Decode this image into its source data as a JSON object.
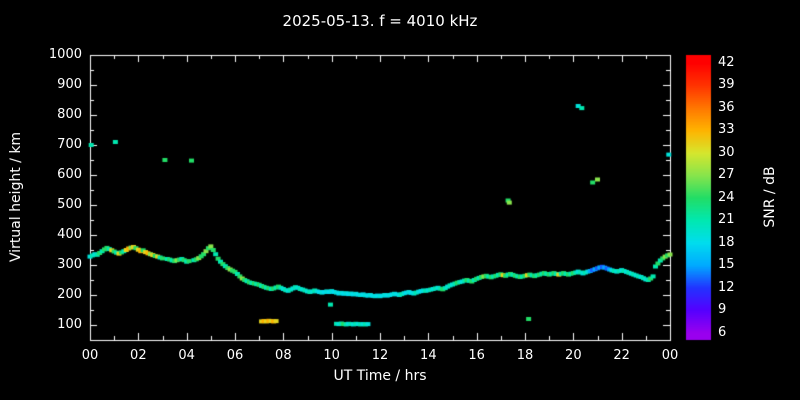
{
  "colors": {
    "background": "#000000",
    "text": "#ffffff",
    "axis": "#ffffff"
  },
  "chart_data": {
    "type": "scatter",
    "title": "2025-05-13. f = 4010 kHz",
    "xlabel": "UT Time / hrs",
    "ylabel": "Virtual height / km",
    "colorbar_label": "SNR / dB",
    "xlim": [
      0,
      24
    ],
    "ylim": [
      50,
      1000
    ],
    "grid": false,
    "legend": "none",
    "x_ticks": [
      {
        "v": 0,
        "label": "00"
      },
      {
        "v": 2,
        "label": "02"
      },
      {
        "v": 4,
        "label": "04"
      },
      {
        "v": 6,
        "label": "06"
      },
      {
        "v": 8,
        "label": "08"
      },
      {
        "v": 10,
        "label": "10"
      },
      {
        "v": 12,
        "label": "12"
      },
      {
        "v": 14,
        "label": "14"
      },
      {
        "v": 16,
        "label": "16"
      },
      {
        "v": 18,
        "label": "18"
      },
      {
        "v": 20,
        "label": "20"
      },
      {
        "v": 22,
        "label": "22"
      },
      {
        "v": 24,
        "label": "00"
      }
    ],
    "x_minor_step": 1,
    "y_ticks": [
      100,
      200,
      300,
      400,
      500,
      600,
      700,
      800,
      900,
      1000
    ],
    "y_minor_step": 50,
    "colorbar": {
      "min": 6,
      "max": 42,
      "ticks": [
        6,
        9,
        12,
        15,
        18,
        21,
        24,
        27,
        30,
        33,
        36,
        39,
        42
      ],
      "scale": [
        [
          6,
          "#9900ee"
        ],
        [
          9,
          "#5500ff"
        ],
        [
          12,
          "#2233ff"
        ],
        [
          15,
          "#00aaff"
        ],
        [
          18,
          "#00ddee"
        ],
        [
          21,
          "#00e8b0"
        ],
        [
          24,
          "#22dd66"
        ],
        [
          27,
          "#88e44c"
        ],
        [
          30,
          "#d6e62e"
        ],
        [
          33,
          "#ffb300"
        ],
        [
          36,
          "#ff7700"
        ],
        [
          39,
          "#ff3300"
        ],
        [
          42,
          "#ff0000"
        ]
      ]
    },
    "point_fields": [
      "ut_hours",
      "virtual_height_km",
      "snr_db"
    ],
    "points": [
      [
        0.0,
        328,
        19
      ],
      [
        0.05,
        700,
        21
      ],
      [
        0.1,
        332,
        21
      ],
      [
        0.2,
        336,
        19
      ],
      [
        0.3,
        334,
        21
      ],
      [
        0.4,
        340,
        24
      ],
      [
        0.5,
        346,
        21
      ],
      [
        0.6,
        352,
        24
      ],
      [
        0.7,
        357,
        24
      ],
      [
        0.8,
        353,
        21
      ],
      [
        0.9,
        349,
        31
      ],
      [
        1.0,
        345,
        24
      ],
      [
        1.05,
        710,
        21
      ],
      [
        1.1,
        341,
        21
      ],
      [
        1.2,
        338,
        31
      ],
      [
        1.3,
        342,
        24
      ],
      [
        1.4,
        346,
        21
      ],
      [
        1.5,
        350,
        31
      ],
      [
        1.6,
        355,
        33
      ],
      [
        1.7,
        358,
        27
      ],
      [
        1.8,
        360,
        31
      ],
      [
        1.9,
        356,
        24
      ],
      [
        2.0,
        351,
        31
      ],
      [
        2.1,
        346,
        33
      ],
      [
        2.2,
        349,
        24
      ],
      [
        2.3,
        343,
        31
      ],
      [
        2.4,
        339,
        33
      ],
      [
        2.5,
        336,
        27
      ],
      [
        2.6,
        333,
        31
      ],
      [
        2.7,
        330,
        24
      ],
      [
        2.8,
        328,
        31
      ],
      [
        2.9,
        325,
        21
      ],
      [
        3.0,
        322,
        24
      ],
      [
        3.1,
        650,
        24
      ],
      [
        3.2,
        320,
        21
      ],
      [
        3.3,
        318,
        24
      ],
      [
        3.4,
        315,
        21
      ],
      [
        3.5,
        313,
        24
      ],
      [
        3.6,
        316,
        27
      ],
      [
        3.7,
        318,
        24
      ],
      [
        3.8,
        320,
        21
      ],
      [
        3.9,
        316,
        24
      ],
      [
        4.0,
        311,
        21
      ],
      [
        4.1,
        313,
        24
      ],
      [
        4.2,
        648,
        24
      ],
      [
        4.3,
        316,
        21
      ],
      [
        4.4,
        319,
        24
      ],
      [
        4.5,
        323,
        27
      ],
      [
        4.6,
        329,
        24
      ],
      [
        4.7,
        336,
        24
      ],
      [
        4.8,
        346,
        27
      ],
      [
        4.9,
        356,
        24
      ],
      [
        5.0,
        362,
        27
      ],
      [
        5.1,
        350,
        24
      ],
      [
        5.2,
        336,
        21
      ],
      [
        5.3,
        321,
        24
      ],
      [
        5.4,
        311,
        21
      ],
      [
        5.5,
        303,
        24
      ],
      [
        5.6,
        296,
        21
      ],
      [
        5.7,
        290,
        24
      ],
      [
        5.8,
        285,
        27
      ],
      [
        5.9,
        281,
        24
      ],
      [
        6.0,
        277,
        24
      ],
      [
        6.1,
        270,
        21
      ],
      [
        6.2,
        262,
        24
      ],
      [
        6.3,
        255,
        27
      ],
      [
        6.4,
        250,
        24
      ],
      [
        6.5,
        246,
        21
      ],
      [
        6.6,
        242,
        24
      ],
      [
        6.7,
        240,
        21
      ],
      [
        6.8,
        238,
        24
      ],
      [
        6.9,
        236,
        21
      ],
      [
        7.0,
        234,
        24
      ],
      [
        7.1,
        112,
        31
      ],
      [
        7.2,
        113,
        33
      ],
      [
        7.3,
        112,
        31
      ],
      [
        7.4,
        114,
        33
      ],
      [
        7.5,
        113,
        31
      ],
      [
        7.6,
        112,
        33
      ],
      [
        7.7,
        113,
        31
      ],
      [
        7.1,
        230,
        21
      ],
      [
        7.2,
        227,
        24
      ],
      [
        7.3,
        224,
        21
      ],
      [
        7.4,
        222,
        24
      ],
      [
        7.5,
        220,
        21
      ],
      [
        7.6,
        222,
        24
      ],
      [
        7.7,
        225,
        21
      ],
      [
        7.8,
        228,
        24
      ],
      [
        7.9,
        224,
        21
      ],
      [
        8.0,
        220,
        19
      ],
      [
        8.1,
        216,
        21
      ],
      [
        8.2,
        214,
        19
      ],
      [
        8.3,
        218,
        21
      ],
      [
        8.4,
        222,
        19
      ],
      [
        8.5,
        226,
        21
      ],
      [
        8.6,
        224,
        19
      ],
      [
        8.7,
        220,
        21
      ],
      [
        8.8,
        218,
        19
      ],
      [
        8.9,
        215,
        21
      ],
      [
        9.0,
        212,
        19
      ],
      [
        9.1,
        210,
        21
      ],
      [
        9.2,
        212,
        19
      ],
      [
        9.3,
        215,
        21
      ],
      [
        9.4,
        212,
        19
      ],
      [
        9.5,
        210,
        18
      ],
      [
        9.6,
        208,
        19
      ],
      [
        9.7,
        210,
        18
      ],
      [
        9.8,
        212,
        19
      ],
      [
        9.9,
        210,
        18
      ],
      [
        9.95,
        168,
        21
      ],
      [
        10.0,
        213,
        19
      ],
      [
        10.1,
        210,
        18
      ],
      [
        10.2,
        104,
        21
      ],
      [
        10.3,
        103,
        19
      ],
      [
        10.4,
        105,
        21
      ],
      [
        10.5,
        103,
        24
      ],
      [
        10.6,
        102,
        21
      ],
      [
        10.7,
        104,
        19
      ],
      [
        10.8,
        103,
        21
      ],
      [
        10.9,
        102,
        19
      ],
      [
        11.0,
        104,
        21
      ],
      [
        11.1,
        103,
        19
      ],
      [
        11.2,
        102,
        21
      ],
      [
        11.3,
        103,
        19
      ],
      [
        11.4,
        102,
        21
      ],
      [
        11.5,
        103,
        19
      ],
      [
        10.2,
        208,
        19
      ],
      [
        10.3,
        205,
        18
      ],
      [
        10.4,
        207,
        19
      ],
      [
        10.5,
        204,
        18
      ],
      [
        10.6,
        206,
        19
      ],
      [
        10.7,
        203,
        18
      ],
      [
        10.8,
        205,
        19
      ],
      [
        10.9,
        202,
        18
      ],
      [
        11.0,
        204,
        19
      ],
      [
        11.1,
        201,
        18
      ],
      [
        11.2,
        200,
        19
      ],
      [
        11.3,
        202,
        18
      ],
      [
        11.4,
        199,
        19
      ],
      [
        11.5,
        198,
        18
      ],
      [
        11.6,
        200,
        19
      ],
      [
        11.7,
        197,
        18
      ],
      [
        11.8,
        196,
        19
      ],
      [
        11.9,
        198,
        18
      ],
      [
        12.0,
        196,
        19
      ],
      [
        12.1,
        198,
        18
      ],
      [
        12.2,
        200,
        19
      ],
      [
        12.3,
        198,
        18
      ],
      [
        12.4,
        200,
        19
      ],
      [
        12.5,
        202,
        18
      ],
      [
        12.6,
        204,
        19
      ],
      [
        12.7,
        202,
        18
      ],
      [
        12.8,
        200,
        19
      ],
      [
        12.9,
        203,
        21
      ],
      [
        13.0,
        206,
        19
      ],
      [
        13.1,
        208,
        18
      ],
      [
        13.2,
        210,
        19
      ],
      [
        13.3,
        207,
        18
      ],
      [
        13.4,
        205,
        19
      ],
      [
        13.5,
        208,
        21
      ],
      [
        13.6,
        211,
        19
      ],
      [
        13.7,
        213,
        18
      ],
      [
        13.8,
        215,
        19
      ],
      [
        13.9,
        214,
        21
      ],
      [
        14.0,
        216,
        19
      ],
      [
        14.1,
        218,
        21
      ],
      [
        14.2,
        220,
        19
      ],
      [
        14.3,
        222,
        21
      ],
      [
        14.4,
        224,
        19
      ],
      [
        14.5,
        221,
        21
      ],
      [
        14.6,
        219,
        24
      ],
      [
        14.7,
        223,
        21
      ],
      [
        14.8,
        228,
        19
      ],
      [
        14.9,
        232,
        21
      ],
      [
        15.0,
        235,
        19
      ],
      [
        15.1,
        238,
        21
      ],
      [
        15.2,
        241,
        24
      ],
      [
        15.3,
        243,
        21
      ],
      [
        15.4,
        245,
        19
      ],
      [
        15.5,
        248,
        21
      ],
      [
        15.6,
        250,
        24
      ],
      [
        15.7,
        247,
        21
      ],
      [
        15.8,
        245,
        24
      ],
      [
        15.9,
        250,
        21
      ],
      [
        16.0,
        254,
        24
      ],
      [
        16.1,
        257,
        21
      ],
      [
        16.2,
        260,
        24
      ],
      [
        16.3,
        262,
        27
      ],
      [
        16.4,
        264,
        24
      ],
      [
        16.5,
        261,
        21
      ],
      [
        16.6,
        259,
        24
      ],
      [
        16.7,
        262,
        21
      ],
      [
        16.8,
        264,
        24
      ],
      [
        16.9,
        267,
        21
      ],
      [
        17.0,
        269,
        24
      ],
      [
        17.1,
        266,
        31
      ],
      [
        17.2,
        264,
        24
      ],
      [
        17.3,
        515,
        24
      ],
      [
        17.35,
        508,
        27
      ],
      [
        17.3,
        268,
        21
      ],
      [
        17.4,
        270,
        24
      ],
      [
        17.5,
        267,
        21
      ],
      [
        17.6,
        264,
        24
      ],
      [
        17.7,
        262,
        21
      ],
      [
        17.8,
        260,
        24
      ],
      [
        17.9,
        262,
        21
      ],
      [
        18.0,
        264,
        24
      ],
      [
        18.15,
        120,
        24
      ],
      [
        18.1,
        266,
        31
      ],
      [
        18.2,
        268,
        24
      ],
      [
        18.3,
        265,
        21
      ],
      [
        18.4,
        263,
        24
      ],
      [
        18.5,
        266,
        21
      ],
      [
        18.6,
        268,
        24
      ],
      [
        18.7,
        271,
        21
      ],
      [
        18.8,
        273,
        24
      ],
      [
        18.9,
        270,
        21
      ],
      [
        19.0,
        268,
        24
      ],
      [
        19.1,
        271,
        21
      ],
      [
        19.2,
        273,
        24
      ],
      [
        19.3,
        270,
        21
      ],
      [
        19.4,
        268,
        31
      ],
      [
        19.5,
        271,
        21
      ],
      [
        19.6,
        273,
        24
      ],
      [
        19.7,
        270,
        21
      ],
      [
        19.8,
        268,
        24
      ],
      [
        19.9,
        271,
        21
      ],
      [
        20.0,
        273,
        24
      ],
      [
        20.2,
        830,
        19
      ],
      [
        20.35,
        823,
        21
      ],
      [
        20.1,
        275,
        21
      ],
      [
        20.2,
        278,
        19
      ],
      [
        20.3,
        275,
        21
      ],
      [
        20.4,
        272,
        19
      ],
      [
        20.5,
        275,
        21
      ],
      [
        20.6,
        278,
        19
      ],
      [
        20.8,
        575,
        24
      ],
      [
        21.0,
        585,
        27
      ],
      [
        20.7,
        280,
        15
      ],
      [
        20.8,
        283,
        13
      ],
      [
        20.9,
        286,
        15
      ],
      [
        21.0,
        289,
        13
      ],
      [
        21.1,
        292,
        15
      ],
      [
        21.2,
        294,
        13
      ],
      [
        21.3,
        291,
        15
      ],
      [
        21.4,
        288,
        13
      ],
      [
        21.5,
        285,
        15
      ],
      [
        21.6,
        282,
        19
      ],
      [
        21.7,
        280,
        21
      ],
      [
        21.8,
        278,
        19
      ],
      [
        21.9,
        280,
        21
      ],
      [
        22.0,
        283,
        19
      ],
      [
        22.1,
        280,
        21
      ],
      [
        22.2,
        277,
        19
      ],
      [
        22.3,
        274,
        21
      ],
      [
        22.4,
        271,
        19
      ],
      [
        22.5,
        268,
        21
      ],
      [
        22.6,
        265,
        19
      ],
      [
        22.7,
        262,
        21
      ],
      [
        22.8,
        260,
        19
      ],
      [
        22.9,
        256,
        21
      ],
      [
        23.0,
        252,
        19
      ],
      [
        23.1,
        250,
        21
      ],
      [
        23.2,
        255,
        24
      ],
      [
        23.3,
        262,
        21
      ],
      [
        23.4,
        295,
        21
      ],
      [
        23.5,
        305,
        24
      ],
      [
        23.6,
        315,
        21
      ],
      [
        23.7,
        322,
        24
      ],
      [
        23.8,
        328,
        27
      ],
      [
        23.9,
        332,
        24
      ],
      [
        23.95,
        668,
        19
      ],
      [
        24.0,
        335,
        27
      ]
    ]
  }
}
